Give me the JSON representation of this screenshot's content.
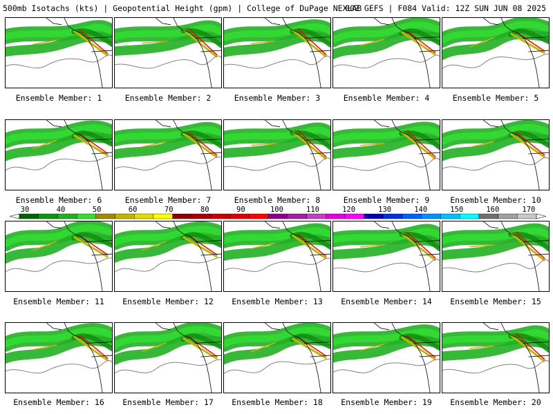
{
  "header": {
    "left": "500mb Isotachs (kts) | Geopotential Height (gpm) | College of DuPage NEXLAB",
    "right": "00Z GEFS | F084 Valid: 12Z SUN JUN 08 2025"
  },
  "members": [
    "Ensemble Member: 1",
    "Ensemble Member: 2",
    "Ensemble Member: 3",
    "Ensemble Member: 4",
    "Ensemble Member: 5",
    "Ensemble Member: 6",
    "Ensemble Member: 7",
    "Ensemble Member: 8",
    "Ensemble Member: 9",
    "Ensemble Member: 10",
    "Ensemble Member: 11",
    "Ensemble Member: 12",
    "Ensemble Member: 13",
    "Ensemble Member: 14",
    "Ensemble Member: 15",
    "Ensemble Member: 16",
    "Ensemble Member: 17",
    "Ensemble Member: 18",
    "Ensemble Member: 19",
    "Ensemble Member: 20"
  ],
  "colorbar": {
    "labels": [
      "30",
      "40",
      "50",
      "60",
      "70",
      "80",
      "90",
      "100",
      "110",
      "120",
      "130",
      "140",
      "150",
      "160",
      "170"
    ],
    "colors": [
      "#006400",
      "#119111",
      "#22b022",
      "#33dd33",
      "#a08a00",
      "#c8b400",
      "#e6dc00",
      "#ffff00",
      "#8b0000",
      "#a80000",
      "#c80000",
      "#e00000",
      "#ff0000",
      "#8b008b",
      "#a020a0",
      "#c040c0",
      "#e000e0",
      "#ff00ff",
      "#0000b0",
      "#0030e0",
      "#0060ff",
      "#0090ff",
      "#00c0ff",
      "#00ffff",
      "#707070",
      "#a0a0a0",
      "#c8c8c8"
    ]
  }
}
